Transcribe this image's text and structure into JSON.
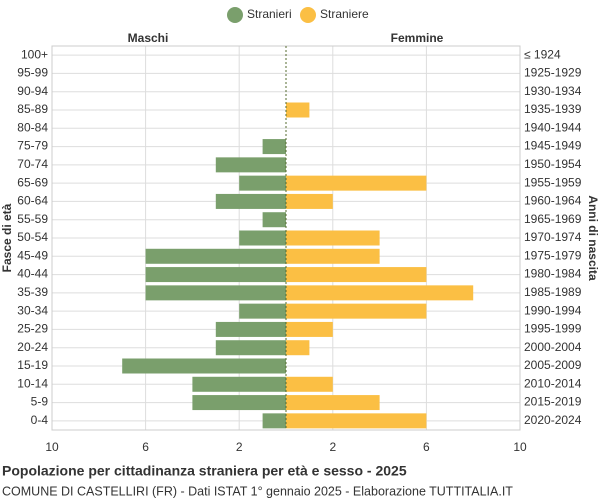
{
  "chart_data": {
    "type": "pyramid",
    "title": "Popolazione per cittadinanza straniera per età e sesso - 2025",
    "subtitle": "COMUNE DI CASTELLIRI (FR) - Dati ISTAT 1° gennaio 2025 - Elaborazione TUTTITALIA.IT",
    "left_label": "Maschi",
    "right_label": "Femmine",
    "y_label": "Fasce di età",
    "y2_label": "Anni di nascita",
    "categories": [
      "100+",
      "95-99",
      "90-94",
      "85-89",
      "80-84",
      "75-79",
      "70-74",
      "65-69",
      "60-64",
      "55-59",
      "50-54",
      "45-49",
      "40-44",
      "35-39",
      "30-34",
      "25-29",
      "20-24",
      "15-19",
      "10-14",
      "5-9",
      "0-4"
    ],
    "birth_years": [
      "≤ 1924",
      "1925-1929",
      "1930-1934",
      "1935-1939",
      "1940-1944",
      "1945-1949",
      "1950-1954",
      "1955-1959",
      "1960-1964",
      "1965-1969",
      "1970-1974",
      "1975-1979",
      "1980-1984",
      "1985-1989",
      "1990-1994",
      "1995-1999",
      "2000-2004",
      "2005-2009",
      "2010-2014",
      "2015-2019",
      "2020-2024"
    ],
    "series": [
      {
        "name": "Stranieri",
        "color": "#7a9f6c",
        "side": "left",
        "values": [
          0,
          0,
          0,
          0,
          0,
          1,
          3,
          2,
          3,
          1,
          2,
          6,
          6,
          6,
          2,
          3,
          3,
          7,
          4,
          4,
          1
        ]
      },
      {
        "name": "Straniere",
        "color": "#fbbf44",
        "side": "right",
        "values": [
          0,
          0,
          0,
          1,
          0,
          0,
          0,
          6,
          2,
          0,
          4,
          4,
          6,
          8,
          6,
          2,
          1,
          0,
          2,
          4,
          6
        ]
      }
    ],
    "xlim": [
      -10,
      10
    ],
    "xticks": [
      {
        "value": -10,
        "label": "10"
      },
      {
        "value": -6,
        "label": "6"
      },
      {
        "value": -2,
        "label": "2"
      },
      2,
      6,
      10
    ],
    "grid": true
  }
}
